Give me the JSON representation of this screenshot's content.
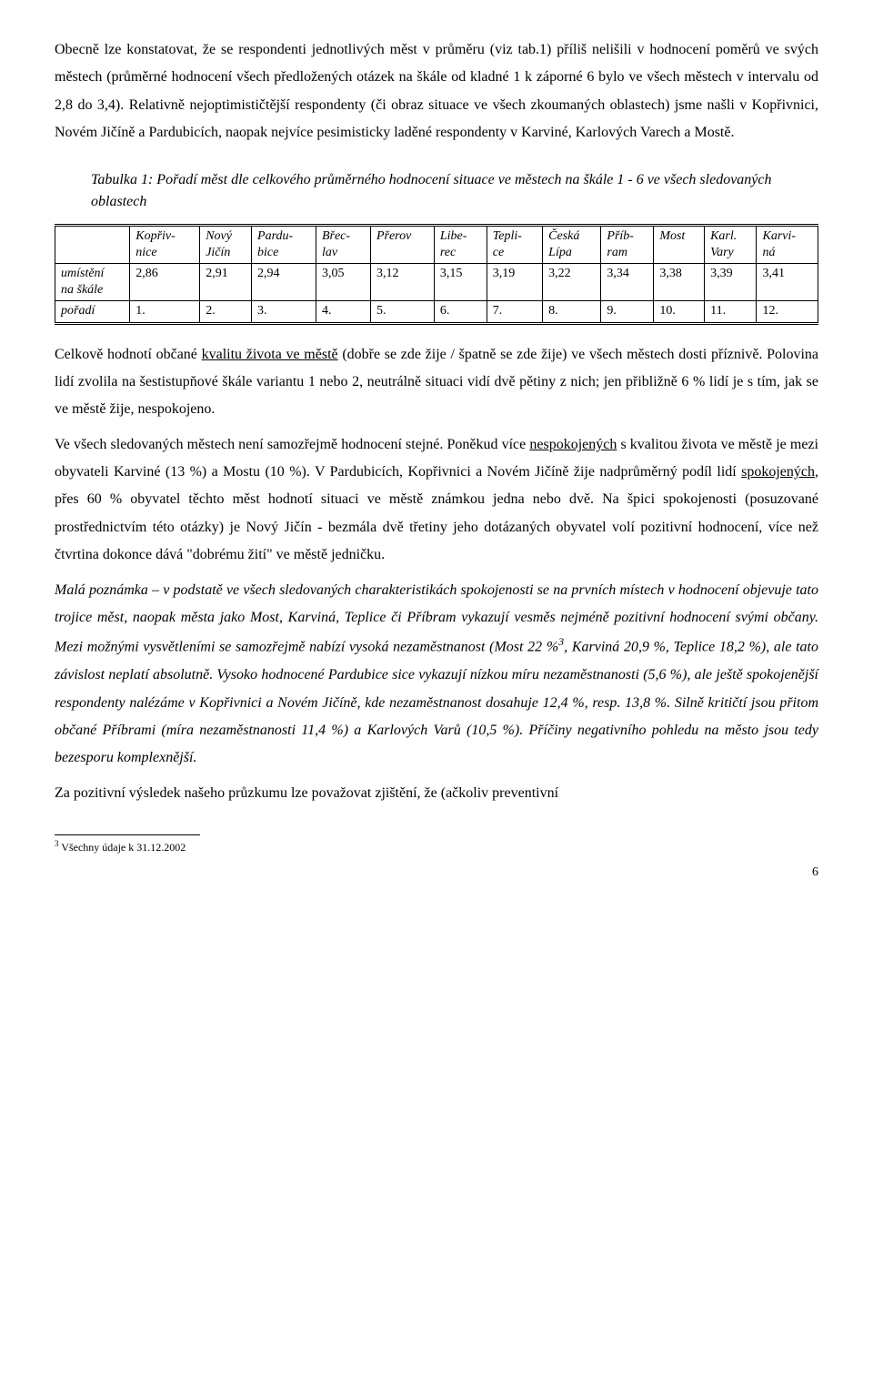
{
  "para1_a": "Obecně lze konstatovat, že se respondenti jednotlivých měst v průměru (viz tab.1) příliš nelišili v hodnocení poměrů ve svých městech (průměrné hodnocení všech předložených otázek na škále od kladné 1 k záporné 6 bylo ve všech městech v intervalu od 2,8 do 3,4). Relativně nejoptimističtější respondenty (či obraz situace ve všech zkoumaných oblastech) jsme našli v Kopřivnici, Novém Jičíně a Pardubicích, naopak nejvíce pesimisticky laděné respondenty v Karviné, Karlových Varech a Mostě.",
  "table_caption": "Tabulka 1: Pořadí měst dle celkového průměrného hodnocení situace ve městech na škále 1 - 6 ve všech sledovaných oblastech",
  "table": {
    "columns": [
      {
        "l1": "Kopřiv-",
        "l2": "nice"
      },
      {
        "l1": "Nový",
        "l2": "Jičín"
      },
      {
        "l1": "Pardu-",
        "l2": "bice"
      },
      {
        "l1": "Břec-",
        "l2": "lav"
      },
      {
        "l1": "Přerov",
        "l2": ""
      },
      {
        "l1": "Libe-",
        "l2": "rec"
      },
      {
        "l1": "Tepli-",
        "l2": "ce"
      },
      {
        "l1": "Česká",
        "l2": "Lípa"
      },
      {
        "l1": "Příb-",
        "l2": "ram"
      },
      {
        "l1": "Most",
        "l2": ""
      },
      {
        "l1": "Karl.",
        "l2": "Vary"
      },
      {
        "l1": "Karvi-",
        "l2": "ná"
      }
    ],
    "row1_label_l1": "umístění",
    "row1_label_l2": "na škále",
    "row1": [
      "2,86",
      "2,91",
      "2,94",
      "3,05",
      "3,12",
      "3,15",
      "3,19",
      "3,22",
      "3,34",
      "3,38",
      "3,39",
      "3,41"
    ],
    "row2_label": "pořadí",
    "row2": [
      "1.",
      "2.",
      "3.",
      "4.",
      "5.",
      "6.",
      "7.",
      "8.",
      "9.",
      "10.",
      "11.",
      "12."
    ]
  },
  "para2_pre": "Celkově hodnotí občané ",
  "para2_u": "kvalitu života ve městě",
  "para2_post": " (dobře se zde žije / špatně se zde žije) ve všech městech dosti příznivě. Polovina lidí zvolila na šestistupňové škále variantu 1 nebo 2, neutrálně situaci vidí dvě pětiny z nich; jen přibližně 6 % lidí je s tím, jak se ve městě žije, nespokojeno.",
  "para3_a": "Ve všech sledovaných městech není samozřejmě hodnocení stejné. Poněkud více ",
  "para3_u1": "nespokojených",
  "para3_b": " s kvalitou života ve městě je mezi obyvateli Karviné (13 %) a Mostu (10 %). V Pardubicích, Kopřivnici a Novém Jičíně žije nadprůměrný podíl lidí ",
  "para3_u2": "spokojených",
  "para3_c": ", přes 60 % obyvatel těchto měst hodnotí situaci ve městě známkou jedna nebo dvě. Na špici spokojenosti (posuzované prostřednictvím této otázky) je Nový Jičín - bezmála dvě třetiny jeho dotázaných obyvatel volí pozitivní hodnocení, více než čtvrtina dokonce dává \"dobrému žití\" ve městě jedničku.",
  "note_a": "Malá poznámka – v podstatě ve všech sledovaných charakteristikách spokojenosti se na prvních místech v hodnocení objevuje tato trojice měst, naopak města jako Most, Karviná, Teplice či Příbram vykazují vesměs nejméně pozitivní hodnocení svými občany. Mezi možnými vysvětleními se samozřejmě nabízí vysoká nezaměstnanost (Most 22 %",
  "note_sup": "3",
  "note_b": ", Karviná 20,9 %, Teplice 18,2 %), ale tato závislost neplatí absolutně. Vysoko hodnocené Pardubice sice vykazují nízkou míru nezaměstnanosti (5,6 %), ale ještě spokojenější respondenty nalézáme v Kopřivnici a Novém Jičíně, kde nezaměstnanost dosahuje 12,4 %, resp. 13,8 %. Silně kritičtí jsou přitom občané Příbrami (míra nezaměstnanosti 11,4 %) a Karlových Varů (10,5 %). Příčiny negativního pohledu na město jsou tedy bezesporu komplexnější.",
  "para4": "Za pozitivní výsledek našeho průzkumu lze považovat zjištění, že (ačkoliv preventivní",
  "footnote_num": "3",
  "footnote_text": " Všechny údaje k 31.12.2002",
  "page_number": "6"
}
